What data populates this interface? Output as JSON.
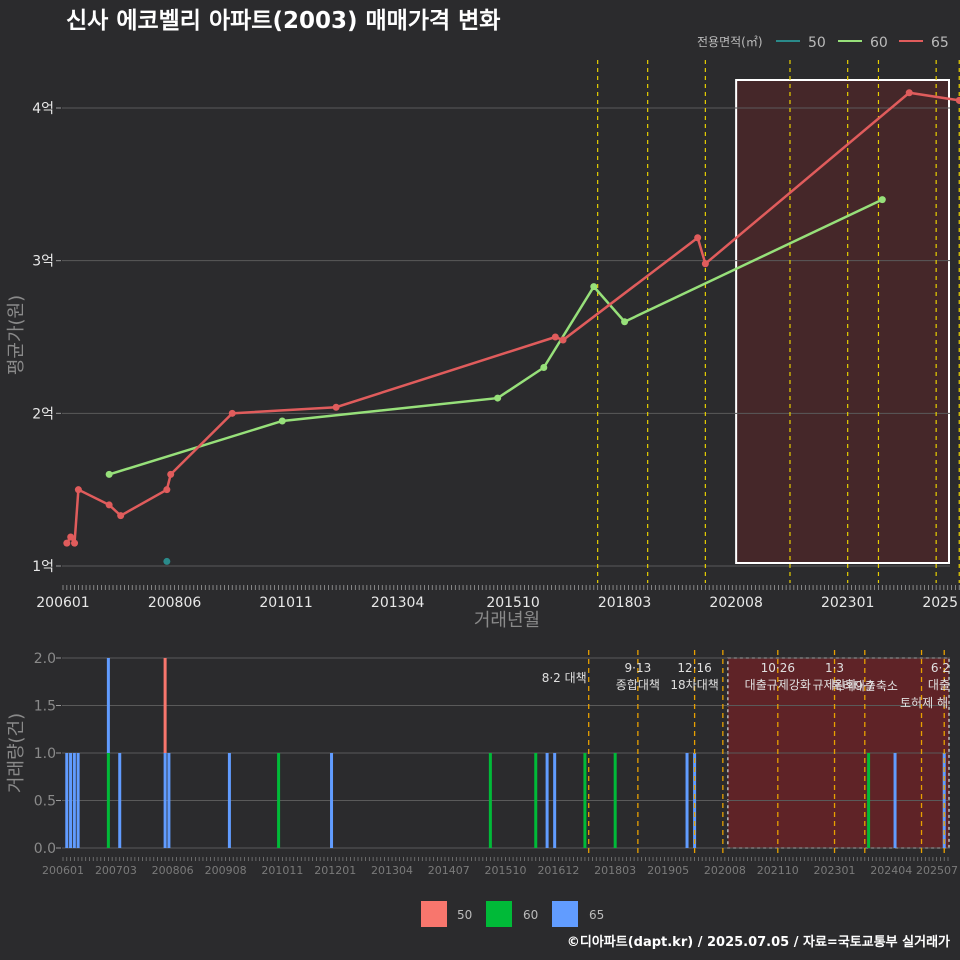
{
  "title": "신사 에코벨리 아파트(2003) 매매가격 변화",
  "footer": "©디아파트(dapt.kr) / 2025.07.05 / 자료=국토교통부 실거래가",
  "legend_top": {
    "title": "전용면적(㎡)",
    "items": [
      "50",
      "60",
      "65"
    ]
  },
  "legend_bottom": {
    "items": [
      "50",
      "60",
      "65"
    ]
  },
  "colors": {
    "s50": "#2a8a8a",
    "s60": "#97e07a",
    "s65": "#e05c5c",
    "b50": "#f8766d",
    "b60": "#00ba38",
    "b65": "#619cff",
    "policy": "#e8d000",
    "shade": "#8a1e22"
  },
  "chart_data": [
    {
      "type": "line",
      "xlabel": "거래년월",
      "ylabel": "평균가(원)",
      "x_ticks": [
        "200601",
        "200806",
        "201011",
        "201304",
        "201510",
        "201803",
        "202008",
        "202301",
        "2025"
      ],
      "y_ticks": [
        "1억",
        "2억",
        "3억",
        "4억"
      ],
      "y_unit": "억",
      "ylim": [
        0.87,
        4.3
      ],
      "series": [
        {
          "name": "50",
          "points": [
            [
              "2008-04",
              1.03
            ]
          ]
        },
        {
          "name": "60",
          "points": [
            [
              "2007-01",
              1.6
            ],
            [
              "2010-10",
              1.95
            ],
            [
              "2015-06",
              2.1
            ],
            [
              "2016-06",
              2.3
            ],
            [
              "2017-07",
              2.83
            ],
            [
              "2018-03",
              2.6
            ],
            [
              "2023-10",
              3.4
            ]
          ]
        },
        {
          "name": "65",
          "points": [
            [
              "2006-02",
              1.15
            ],
            [
              "2006-03",
              1.19
            ],
            [
              "2006-04",
              1.15
            ],
            [
              "2006-05",
              1.5
            ],
            [
              "2007-01",
              1.4
            ],
            [
              "2007-04",
              1.33
            ],
            [
              "2008-04",
              1.5
            ],
            [
              "2008-05",
              1.6
            ],
            [
              "2009-09",
              2.0
            ],
            [
              "2011-12",
              2.04
            ],
            [
              "2016-09",
              2.5
            ],
            [
              "2016-11",
              2.48
            ],
            [
              "2019-10",
              3.15
            ],
            [
              "2019-12",
              2.98
            ],
            [
              "2024-05",
              4.1
            ],
            [
              "2025-06",
              4.05
            ]
          ]
        }
      ],
      "policy_lines": [
        "2017-08",
        "2018-09",
        "2019-12",
        "2021-10",
        "2023-01",
        "2023-09",
        "2024-12",
        "2025-06"
      ],
      "shaded_range": [
        "2020-08",
        "2025-07"
      ]
    },
    {
      "type": "bar",
      "xlabel": "",
      "ylabel": "거래량(건)",
      "x_ticks": [
        "200601",
        "200703",
        "200806",
        "200908",
        "201011",
        "201201",
        "201304",
        "201407",
        "201510",
        "201612",
        "201803",
        "201905",
        "202008",
        "202110",
        "202301",
        "202404",
        "202507"
      ],
      "y_ticks": [
        "0.0",
        "0.5",
        "1.0",
        "1.5",
        "2.0"
      ],
      "ylim": [
        0,
        2
      ],
      "bars": [
        {
          "x": "2006-02",
          "s50": 0,
          "s60": 0,
          "s65": 1
        },
        {
          "x": "2006-03",
          "s50": 0,
          "s60": 0,
          "s65": 1
        },
        {
          "x": "2006-04",
          "s50": 0,
          "s60": 0,
          "s65": 1
        },
        {
          "x": "2006-05",
          "s50": 0,
          "s60": 0,
          "s65": 1
        },
        {
          "x": "2007-01",
          "s50": 0,
          "s60": 1,
          "s65": 1
        },
        {
          "x": "2007-04",
          "s50": 0,
          "s60": 0,
          "s65": 1
        },
        {
          "x": "2008-04",
          "s50": 1,
          "s60": 0,
          "s65": 1
        },
        {
          "x": "2008-05",
          "s50": 0,
          "s60": 0,
          "s65": 1
        },
        {
          "x": "2009-09",
          "s50": 0,
          "s60": 0,
          "s65": 1
        },
        {
          "x": "2010-10",
          "s50": 0,
          "s60": 1,
          "s65": 0
        },
        {
          "x": "2011-12",
          "s50": 0,
          "s60": 0,
          "s65": 1
        },
        {
          "x": "2015-06",
          "s50": 0,
          "s60": 1,
          "s65": 0
        },
        {
          "x": "2016-06",
          "s50": 0,
          "s60": 1,
          "s65": 0
        },
        {
          "x": "2016-09",
          "s50": 0,
          "s60": 0,
          "s65": 1
        },
        {
          "x": "2016-11",
          "s50": 0,
          "s60": 0,
          "s65": 1
        },
        {
          "x": "2017-07",
          "s50": 0,
          "s60": 1,
          "s65": 0
        },
        {
          "x": "2018-03",
          "s50": 0,
          "s60": 1,
          "s65": 0
        },
        {
          "x": "2019-10",
          "s50": 0,
          "s60": 0,
          "s65": 1
        },
        {
          "x": "2019-12",
          "s50": 0,
          "s60": 0,
          "s65": 1
        },
        {
          "x": "2023-10",
          "s50": 0,
          "s60": 1,
          "s65": 0
        },
        {
          "x": "2024-05",
          "s50": 0,
          "s60": 0,
          "s65": 1
        },
        {
          "x": "2025-06",
          "s50": 0,
          "s60": 0,
          "s65": 1
        }
      ],
      "annotations": [
        {
          "date": "2017-08",
          "lines": [
            "8·2 대책"
          ]
        },
        {
          "date": "2018-09",
          "lines": [
            "9·13",
            "종합대책"
          ]
        },
        {
          "date": "2019-12",
          "lines": [
            "12·16",
            "18차대책"
          ]
        },
        {
          "date": "2021-10",
          "lines": [
            "10·26",
            "대출규제강화"
          ]
        },
        {
          "date": "2023-01",
          "lines": [
            "1·3",
            "규제완화"
          ]
        },
        {
          "date": "2023-09",
          "lines": [
            "9·7",
            "특례대출축소"
          ]
        },
        {
          "date": "2024-12",
          "lines": [
            "",
            "토허제 해"
          ]
        },
        {
          "date": "2025-06",
          "lines": [
            "6·2",
            "대출"
          ]
        }
      ],
      "shaded_range": [
        "2020-08",
        "2025-07"
      ]
    }
  ]
}
